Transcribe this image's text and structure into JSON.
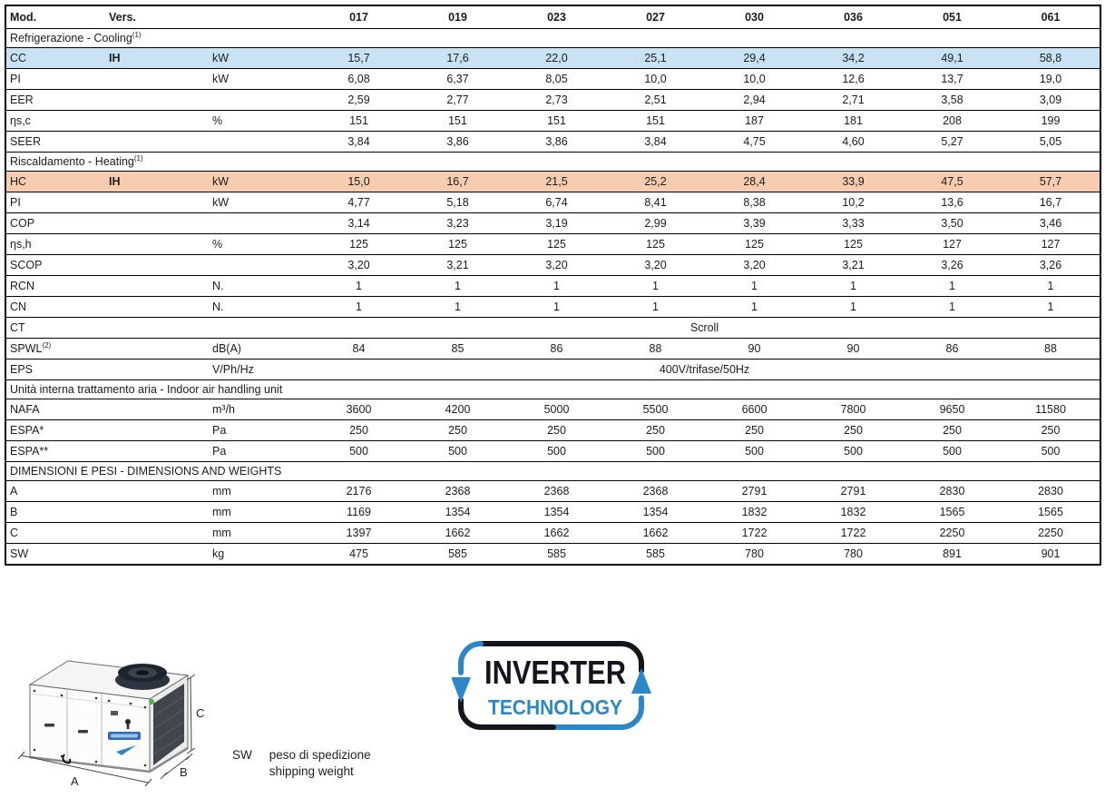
{
  "colors": {
    "cooling_row_bg": "#c9e3f5",
    "heating_row_bg": "#f8ccae",
    "logo_blue": "#2d87c6",
    "logo_dark": "#13161d",
    "drawing_green": "#44b649",
    "drawing_badge_blue": "#2f6db5"
  },
  "table": {
    "header": {
      "col1": "Mod.",
      "col2": "Vers.",
      "col3": "",
      "models": [
        "017",
        "019",
        "023",
        "027",
        "030",
        "036",
        "051",
        "061"
      ]
    },
    "rows": [
      {
        "type": "section",
        "label": "Refrigerazione - Cooling",
        "sup": "(1)"
      },
      {
        "type": "data",
        "label": "CC",
        "vers": "IH",
        "unit": "kW",
        "highlight": "cooling",
        "values": [
          "15,7",
          "17,6",
          "22,0",
          "25,1",
          "29,4",
          "34,2",
          "49,1",
          "58,8"
        ]
      },
      {
        "type": "data",
        "label": "PI",
        "vers": "",
        "unit": "kW",
        "values": [
          "6,08",
          "6,37",
          "8,05",
          "10,0",
          "10,0",
          "12,6",
          "13,7",
          "19,0"
        ]
      },
      {
        "type": "data",
        "label": "EER",
        "vers": "",
        "unit": "",
        "values": [
          "2,59",
          "2,77",
          "2,73",
          "2,51",
          "2,94",
          "2,71",
          "3,58",
          "3,09"
        ]
      },
      {
        "type": "data",
        "label": "ηs,c",
        "vers": "",
        "unit": "%",
        "values": [
          "151",
          "151",
          "151",
          "151",
          "187",
          "181",
          "208",
          "199"
        ]
      },
      {
        "type": "data",
        "label": "SEER",
        "vers": "",
        "unit": "",
        "values": [
          "3,84",
          "3,86",
          "3,86",
          "3,84",
          "4,75",
          "4,60",
          "5,27",
          "5,05"
        ]
      },
      {
        "type": "section",
        "label": "Riscaldamento - Heating",
        "sup": "(1)"
      },
      {
        "type": "data",
        "label": "HC",
        "vers": "IH",
        "unit": "kW",
        "highlight": "heating",
        "values": [
          "15,0",
          "16,7",
          "21,5",
          "25,2",
          "28,4",
          "33,9",
          "47,5",
          "57,7"
        ]
      },
      {
        "type": "data",
        "label": "PI",
        "vers": "",
        "unit": "kW",
        "values": [
          "4,77",
          "5,18",
          "6,74",
          "8,41",
          "8,38",
          "10,2",
          "13,6",
          "16,7"
        ]
      },
      {
        "type": "data",
        "label": "COP",
        "vers": "",
        "unit": "",
        "values": [
          "3,14",
          "3,23",
          "3,19",
          "2,99",
          "3,39",
          "3,33",
          "3,50",
          "3,46"
        ]
      },
      {
        "type": "data",
        "label": "ηs,h",
        "vers": "",
        "unit": "%",
        "values": [
          "125",
          "125",
          "125",
          "125",
          "125",
          "125",
          "127",
          "127"
        ]
      },
      {
        "type": "data",
        "label": "SCOP",
        "vers": "",
        "unit": "",
        "values": [
          "3,20",
          "3,21",
          "3,20",
          "3,20",
          "3,20",
          "3,21",
          "3,26",
          "3,26"
        ]
      },
      {
        "type": "data",
        "label": "RCN",
        "vers": "",
        "unit": "N.",
        "values": [
          "1",
          "1",
          "1",
          "1",
          "1",
          "1",
          "1",
          "1"
        ]
      },
      {
        "type": "data",
        "label": "CN",
        "vers": "",
        "unit": "N.",
        "values": [
          "1",
          "1",
          "1",
          "1",
          "1",
          "1",
          "1",
          "1"
        ]
      },
      {
        "type": "span",
        "label": "CT",
        "unit": "",
        "value": "Scroll"
      },
      {
        "type": "data",
        "label": "SPWL",
        "sup": "(2)",
        "vers": "",
        "unit": "dB(A)",
        "values": [
          "84",
          "85",
          "86",
          "88",
          "90",
          "90",
          "86",
          "88"
        ]
      },
      {
        "type": "span",
        "label": "EPS",
        "unit": "V/Ph/Hz",
        "value": "400V/trifase/50Hz"
      },
      {
        "type": "section",
        "label": "Unità interna trattamento aria - Indoor air handling unit"
      },
      {
        "type": "data",
        "label": "NAFA",
        "vers": "",
        "unit": "m³/h",
        "values": [
          "3600",
          "4200",
          "5000",
          "5500",
          "6600",
          "7800",
          "9650",
          "11580"
        ]
      },
      {
        "type": "data",
        "label": "ESPA*",
        "vers": "",
        "unit": "Pa",
        "values": [
          "250",
          "250",
          "250",
          "250",
          "250",
          "250",
          "250",
          "250"
        ]
      },
      {
        "type": "data",
        "label": "ESPA**",
        "vers": "",
        "unit": "Pa",
        "values": [
          "500",
          "500",
          "500",
          "500",
          "500",
          "500",
          "500",
          "500"
        ]
      },
      {
        "type": "section",
        "label": "DIMENSIONI E PESI - DIMENSIONS AND WEIGHTS"
      },
      {
        "type": "data",
        "label": "A",
        "vers": "",
        "unit": "mm",
        "values": [
          "2176",
          "2368",
          "2368",
          "2368",
          "2791",
          "2791",
          "2830",
          "2830"
        ]
      },
      {
        "type": "data",
        "label": "B",
        "vers": "",
        "unit": "mm",
        "values": [
          "1169",
          "1354",
          "1354",
          "1354",
          "1832",
          "1832",
          "1565",
          "1565"
        ]
      },
      {
        "type": "data",
        "label": "C",
        "vers": "",
        "unit": "mm",
        "values": [
          "1397",
          "1662",
          "1662",
          "1662",
          "1722",
          "1722",
          "2250",
          "2250"
        ]
      },
      {
        "type": "data",
        "label": "SW",
        "vers": "",
        "unit": "kg",
        "values": [
          "475",
          "585",
          "585",
          "585",
          "780",
          "780",
          "891",
          "901"
        ]
      }
    ]
  },
  "figure": {
    "dim_a": "A",
    "dim_b": "B",
    "dim_c": "C"
  },
  "legend": {
    "term": "SW",
    "line1": "peso di spedizione",
    "line2": "shipping weight"
  },
  "logo": {
    "line1": "INVERTER",
    "line2": "TECHNOLOGY"
  }
}
